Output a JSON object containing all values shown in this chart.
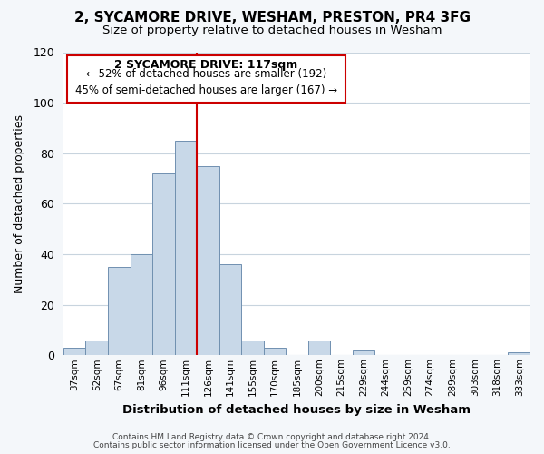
{
  "title": "2, SYCAMORE DRIVE, WESHAM, PRESTON, PR4 3FG",
  "subtitle": "Size of property relative to detached houses in Wesham",
  "xlabel": "Distribution of detached houses by size in Wesham",
  "ylabel": "Number of detached properties",
  "bar_labels": [
    "37sqm",
    "52sqm",
    "67sqm",
    "81sqm",
    "96sqm",
    "111sqm",
    "126sqm",
    "141sqm",
    "155sqm",
    "170sqm",
    "185sqm",
    "200sqm",
    "215sqm",
    "229sqm",
    "244sqm",
    "259sqm",
    "274sqm",
    "289sqm",
    "303sqm",
    "318sqm",
    "333sqm"
  ],
  "bar_values": [
    3,
    6,
    35,
    40,
    72,
    85,
    75,
    36,
    6,
    3,
    0,
    6,
    0,
    2,
    0,
    0,
    0,
    0,
    0,
    0,
    1
  ],
  "bar_color": "#c8d8e8",
  "bar_edge_color": "#7090b0",
  "ylim": [
    0,
    120
  ],
  "yticks": [
    0,
    20,
    40,
    60,
    80,
    100,
    120
  ],
  "vline_x": 5.5,
  "vline_color": "#cc0000",
  "annotation_title": "2 SYCAMORE DRIVE: 117sqm",
  "annotation_line1": "← 52% of detached houses are smaller (192)",
  "annotation_line2": "45% of semi-detached houses are larger (167) →",
  "annotation_box_color": "#cc0000",
  "footer_line1": "Contains HM Land Registry data © Crown copyright and database right 2024.",
  "footer_line2": "Contains public sector information licensed under the Open Government Licence v3.0.",
  "background_color": "#f4f7fa",
  "plot_bg_color": "#ffffff",
  "title_fontsize": 11,
  "subtitle_fontsize": 9.5,
  "ylabel_fontsize": 9,
  "xlabel_fontsize": 9.5
}
